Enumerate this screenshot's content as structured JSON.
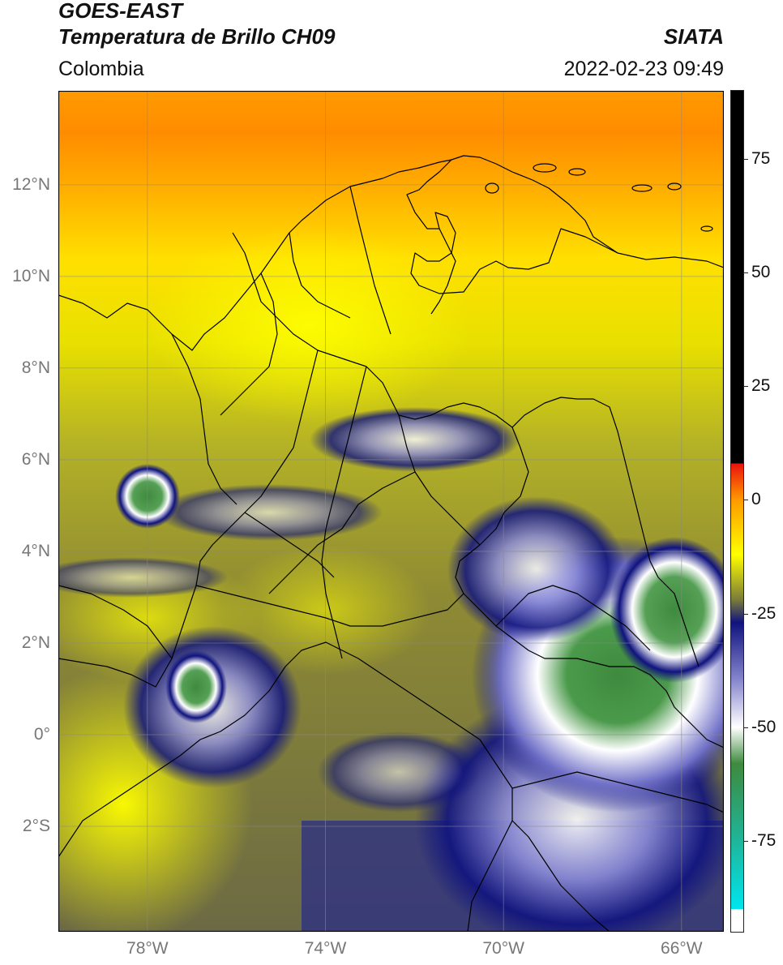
{
  "header": {
    "line1": "GOES-EAST",
    "line2": "Temperatura de Brillo CH09",
    "brand": "SIATA",
    "region": "Colombia",
    "timestamp": "2022-02-23 09:49"
  },
  "map": {
    "extent": {
      "lon_min": -80,
      "lon_max": -65.05,
      "lat_min": -4.3,
      "lat_max": 14.05
    },
    "lat_ticks": [
      {
        "value": 12,
        "label": "12°N"
      },
      {
        "value": 10,
        "label": "10°N"
      },
      {
        "value": 8,
        "label": "8°N"
      },
      {
        "value": 6,
        "label": "6°N"
      },
      {
        "value": 4,
        "label": "4°N"
      },
      {
        "value": 2,
        "label": "2°N"
      },
      {
        "value": 0,
        "label": "0°"
      },
      {
        "value": -2,
        "label": "2°S"
      }
    ],
    "lon_ticks": [
      {
        "value": -78,
        "label": "78°W"
      },
      {
        "value": -74,
        "label": "74°W"
      },
      {
        "value": -70,
        "label": "70°W"
      },
      {
        "value": -66,
        "label": "66°W"
      }
    ],
    "grid": true
  },
  "colorbar": {
    "range": [
      -95,
      90
    ],
    "ticks": [
      {
        "value": 75,
        "label": "75"
      },
      {
        "value": 50,
        "label": "50"
      },
      {
        "value": 25,
        "label": "25"
      },
      {
        "value": 0,
        "label": "0"
      },
      {
        "value": -25,
        "label": "-25"
      },
      {
        "value": -50,
        "label": "-50"
      },
      {
        "value": -75,
        "label": "-75"
      }
    ],
    "colors": {
      "black": "#000000",
      "red": "#e8120e",
      "orange": "#ff9a00",
      "yellow": "#ffff00",
      "olive": "#7a7a3a",
      "navy": "#10137e",
      "white": "#ffffff",
      "green": "#3e8a3e",
      "teal": "#1fb59a",
      "cyan": "#00e5ee"
    }
  }
}
